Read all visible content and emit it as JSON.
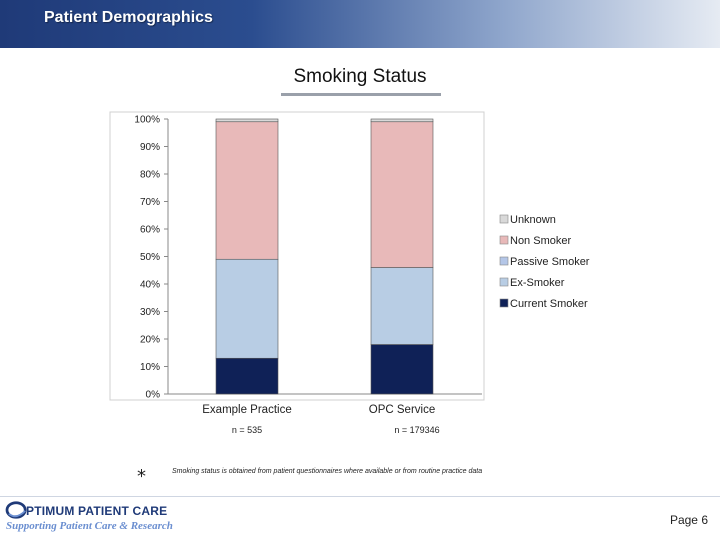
{
  "header": {
    "title": "Patient Demographics"
  },
  "chart_data": {
    "type": "bar",
    "stacked": true,
    "title": "Smoking Status",
    "categories": [
      "Example Practice",
      "OPC Service"
    ],
    "category_notes": [
      "n = 535",
      "n = 179346"
    ],
    "ylim": [
      0,
      100
    ],
    "yticks": [
      "0%",
      "10%",
      "20%",
      "30%",
      "40%",
      "50%",
      "60%",
      "70%",
      "80%",
      "90%",
      "100%"
    ],
    "series": [
      {
        "name": "Current Smoker",
        "values": [
          13,
          18
        ],
        "color": "#0f2157"
      },
      {
        "name": "Ex-Smoker",
        "values": [
          36,
          28
        ],
        "color": "#b8cde4"
      },
      {
        "name": "Passive Smoker",
        "values": [
          0,
          0
        ],
        "color": "#b4c6e7"
      },
      {
        "name": "Non Smoker",
        "values": [
          50,
          53
        ],
        "color": "#e8b9b9"
      },
      {
        "name": "Unknown",
        "values": [
          1,
          1
        ],
        "color": "#d9d9d9"
      }
    ],
    "legend_order": [
      "Unknown",
      "Non Smoker",
      "Passive Smoker",
      "Ex-Smoker",
      "Current Smoker"
    ],
    "legend_position": "right",
    "grid": false
  },
  "footnote": {
    "symbol": "*",
    "text": "Smoking status is obtained from patient questionnaires where available or from routine practice data"
  },
  "footer": {
    "logo_main": "PTIMUM PATIENT CARE",
    "logo_tagline": "Supporting Patient Care & Research",
    "page": "Page 6"
  }
}
